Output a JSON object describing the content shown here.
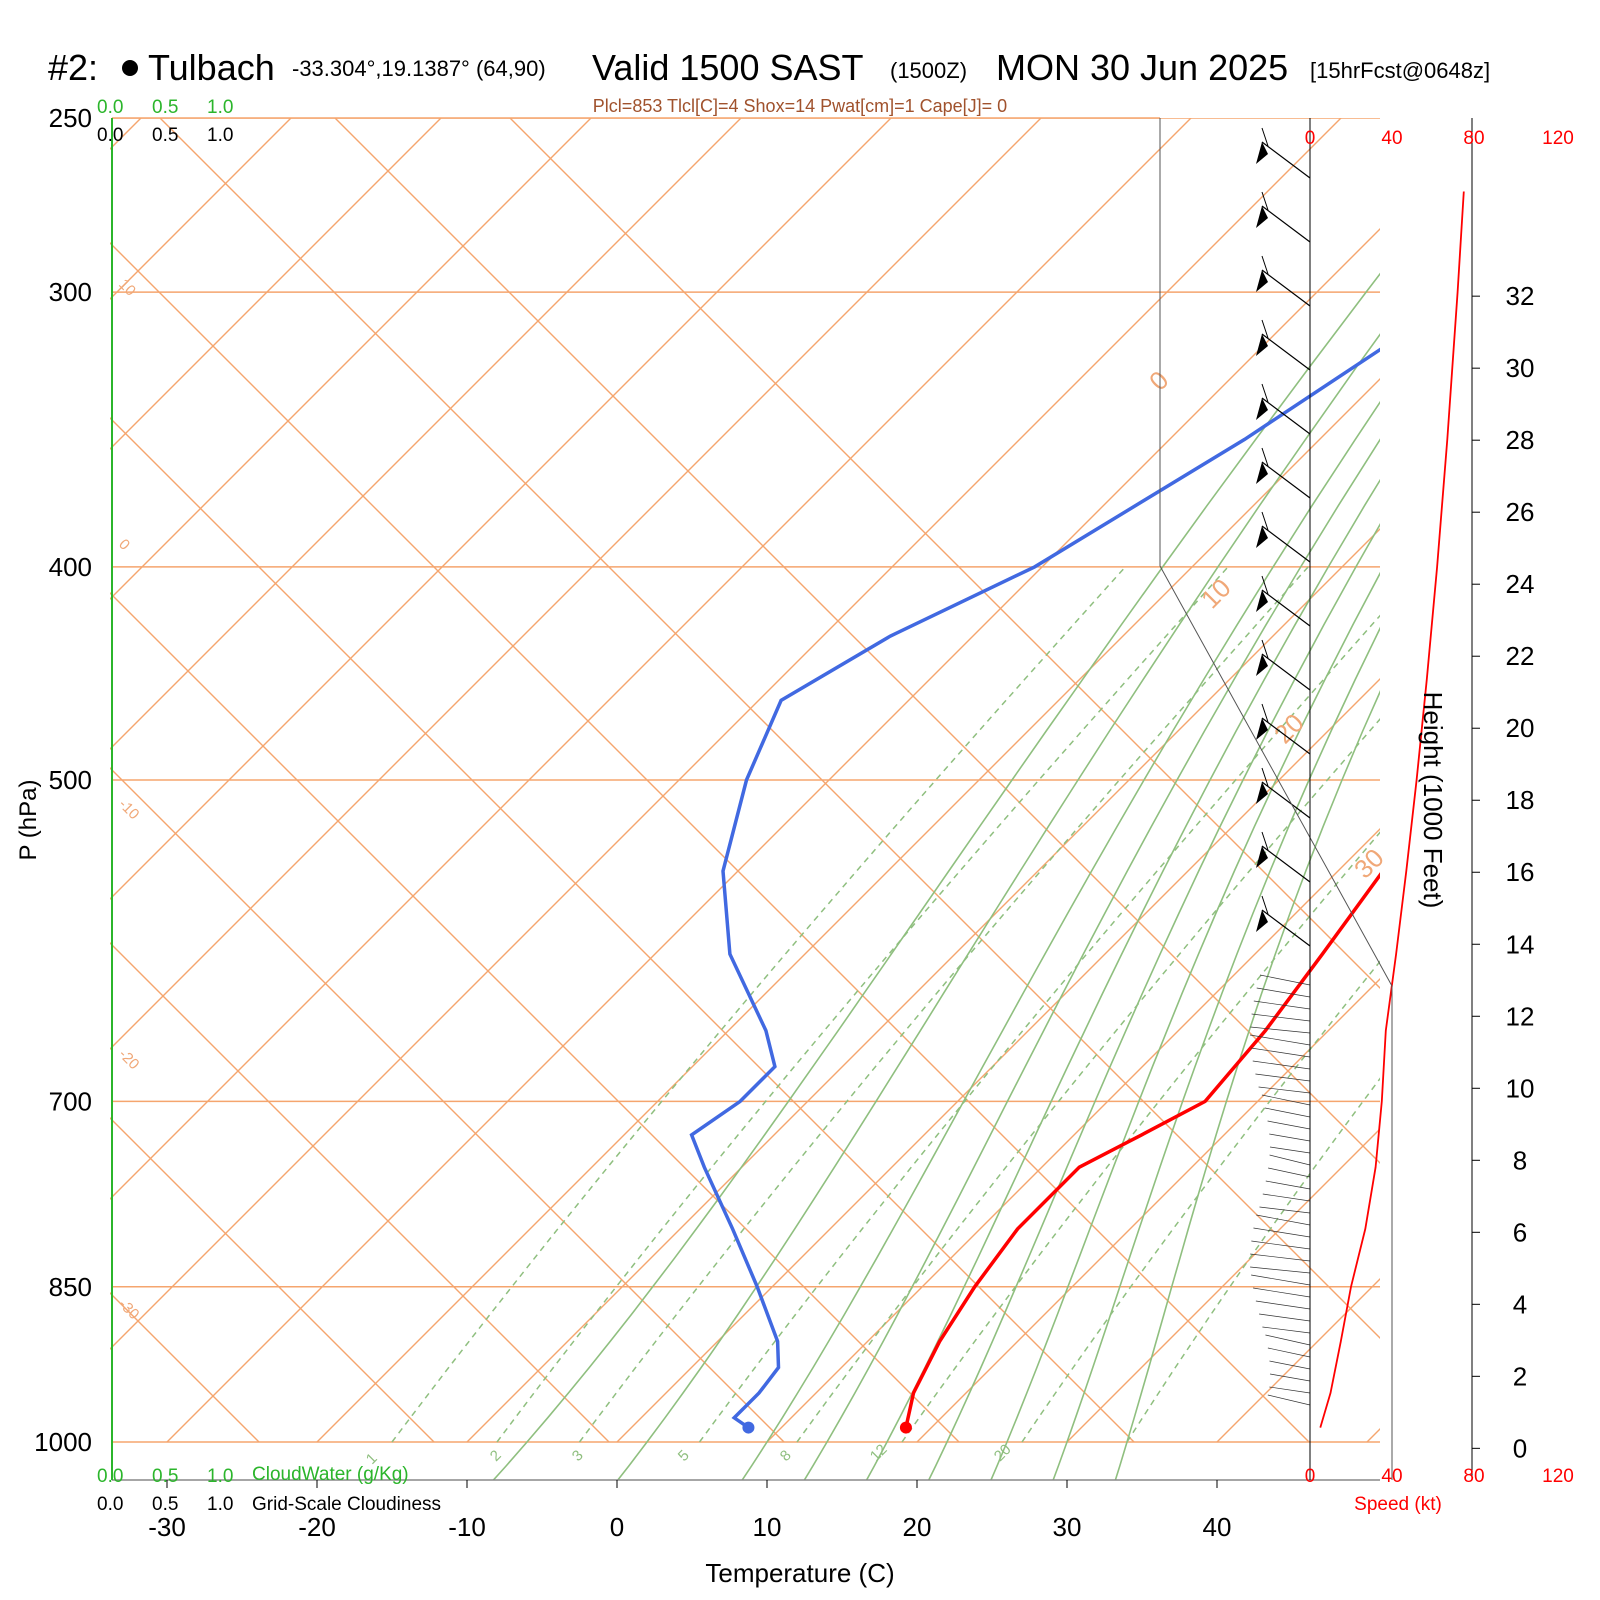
{
  "header": {
    "station_num": "#2:",
    "station_name": "Tulbach",
    "coords": "-33.304°,19.1387° (64,90)",
    "valid": "Valid 1500 SAST",
    "zulu": "(1500Z)",
    "date": "MON 30 Jun 2025",
    "forecast": "[15hrFcst@0648z]"
  },
  "stats_line": "Plcl=853 Tlcl[C]=4 Shox=14 Pwat[cm]=1 Cape[J]= 0",
  "cloud_scale": {
    "ticks": [
      "0.0",
      "0.5",
      "1.0"
    ],
    "cloudwater_label": "CloudWater (g/Kg)",
    "cloudiness_label": "Grid-Scale Cloudiness",
    "green_color": "#2bb52b"
  },
  "speed_axis": {
    "ticks": [
      "0",
      "40",
      "80",
      "120"
    ],
    "label": "Speed (kt)",
    "color": "#ff0000"
  },
  "chart_data": {
    "type": "line",
    "title": "Skew-T log-P sounding",
    "xlabel": "Temperature (C)",
    "ylabel": "P (hPa)",
    "y2label": "Height (1000 Feet)",
    "x_ticks": [
      "-30",
      "-20",
      "-10",
      "0",
      "10",
      "20",
      "30",
      "40"
    ],
    "pressure_ticks": [
      "250",
      "300",
      "400",
      "500",
      "700",
      "850",
      "1000"
    ],
    "height_ticks": [
      "0",
      "2",
      "4",
      "6",
      "8",
      "10",
      "12",
      "14",
      "16",
      "18",
      "20",
      "22",
      "24",
      "26",
      "28",
      "30",
      "32"
    ],
    "isotherm_labels": [
      "10",
      "0",
      "-10",
      "-20",
      "-30"
    ],
    "isotherm_labels_right": [
      "0",
      "10",
      "20",
      "30"
    ],
    "mixing_ratio_labels": [
      "1",
      "2",
      "3",
      "5",
      "8",
      "12",
      "20"
    ],
    "colors": {
      "temperature": "#ff0000",
      "dewpoint": "#4169e1",
      "isobar": "#f5a56e",
      "adiabat": "#8fbf7f"
    },
    "series": [
      {
        "name": "Temperature",
        "points": [
          [
            985,
            18.3
          ],
          [
            950,
            16.5
          ],
          [
            900,
            14.8
          ],
          [
            850,
            13.5
          ],
          [
            800,
            12.5
          ],
          [
            750,
            12.5
          ],
          [
            725,
            14.5
          ],
          [
            700,
            16.5
          ],
          [
            650,
            15.8
          ],
          [
            600,
            14.5
          ],
          [
            550,
            13.0
          ],
          [
            500,
            10.5
          ],
          [
            450,
            6.5
          ],
          [
            400,
            0.5
          ],
          [
            350,
            -5.8
          ],
          [
            300,
            -13.0
          ],
          [
            270,
            -16.0
          ]
        ]
      },
      {
        "name": "Dewpoint",
        "points": [
          [
            985,
            7.8
          ],
          [
            975,
            6.2
          ],
          [
            950,
            6.2
          ],
          [
            925,
            5.8
          ],
          [
            900,
            4.0
          ],
          [
            850,
            -1.0
          ],
          [
            800,
            -6.5
          ],
          [
            750,
            -12.5
          ],
          [
            725,
            -15.5
          ],
          [
            700,
            -14.5
          ],
          [
            675,
            -14.5
          ],
          [
            650,
            -17.5
          ],
          [
            600,
            -25.0
          ],
          [
            550,
            -31.0
          ],
          [
            500,
            -35.5
          ],
          [
            460,
            -38.5
          ],
          [
            430,
            -35.5
          ],
          [
            400,
            -30.5
          ],
          [
            350,
            -25.0
          ],
          [
            300,
            -20.0
          ],
          [
            270,
            -17.5
          ]
        ]
      },
      {
        "name": "Wind speed",
        "points": [
          [
            985,
            5
          ],
          [
            950,
            10
          ],
          [
            900,
            15
          ],
          [
            850,
            20
          ],
          [
            800,
            27
          ],
          [
            750,
            32
          ],
          [
            700,
            35
          ],
          [
            650,
            37
          ],
          [
            600,
            42
          ],
          [
            550,
            47
          ],
          [
            500,
            52
          ],
          [
            450,
            57
          ],
          [
            400,
            62
          ],
          [
            350,
            67
          ],
          [
            300,
            72
          ],
          [
            270,
            75
          ]
        ]
      }
    ],
    "xlim": [
      -34,
      36
    ],
    "ylim": [
      1000,
      250
    ],
    "skew": "45-degree isotherms",
    "grid": true
  }
}
